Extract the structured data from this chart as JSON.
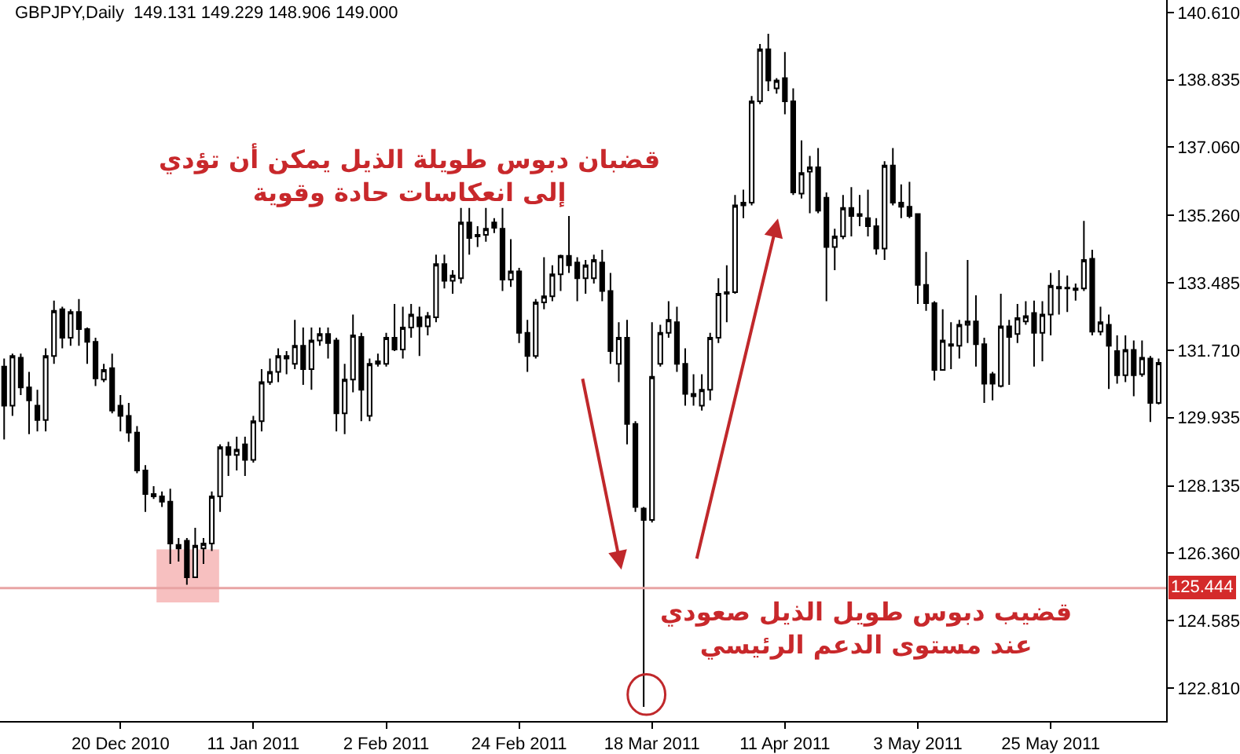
{
  "chart_data": {
    "type": "candlestick",
    "title": "GBPJPY,Daily  149.131 149.229 148.906 149.000",
    "categories": [
      null,
      null,
      null,
      null,
      null,
      null,
      null,
      null,
      null,
      null,
      null,
      null,
      null,
      null,
      "20 Dec 2010",
      null,
      null,
      null,
      null,
      null,
      null,
      null,
      null,
      null,
      null,
      null,
      null,
      null,
      null,
      null,
      "11 Jan 2011",
      null,
      null,
      null,
      null,
      null,
      null,
      null,
      null,
      null,
      null,
      null,
      null,
      null,
      null,
      null,
      "2 Feb 2011",
      null,
      null,
      null,
      null,
      null,
      null,
      null,
      null,
      null,
      null,
      null,
      null,
      null,
      null,
      null,
      "24 Feb 2011",
      null,
      null,
      null,
      null,
      null,
      null,
      null,
      null,
      null,
      null,
      null,
      null,
      null,
      null,
      null,
      "18 Mar 2011",
      null,
      null,
      null,
      null,
      null,
      null,
      null,
      null,
      null,
      null,
      null,
      null,
      null,
      null,
      null,
      "11 Apr 2011",
      null,
      null,
      null,
      null,
      null,
      null,
      null,
      null,
      null,
      null,
      null,
      null,
      null,
      null,
      null,
      "3 May 2011",
      null,
      null,
      null,
      null,
      null,
      null,
      null,
      null,
      null,
      null,
      null,
      null,
      null,
      null,
      null,
      "25 May 2011",
      null,
      null,
      null,
      null,
      null,
      null,
      null,
      null,
      null,
      null,
      null,
      null,
      null
    ],
    "ohlc": [
      [
        131.28,
        131.49,
        129.36,
        130.25
      ],
      [
        130.25,
        131.62,
        129.98,
        131.56
      ],
      [
        131.51,
        131.62,
        130.53,
        130.73
      ],
      [
        130.73,
        131.14,
        129.5,
        130.39
      ],
      [
        130.25,
        130.67,
        129.57,
        129.87
      ],
      [
        129.87,
        131.76,
        129.57,
        131.56
      ],
      [
        131.56,
        133.02,
        131.35,
        132.75
      ],
      [
        132.79,
        132.86,
        131.76,
        132.04
      ],
      [
        132.04,
        132.79,
        131.83,
        132.72
      ],
      [
        132.72,
        133.06,
        131.83,
        132.27
      ],
      [
        132.27,
        132.31,
        131.35,
        131.93
      ],
      [
        131.93,
        132.04,
        130.77,
        130.97
      ],
      [
        130.94,
        131.35,
        130.87,
        131.19
      ],
      [
        131.24,
        131.62,
        130.05,
        130.12
      ],
      [
        130.25,
        130.53,
        129.57,
        129.98
      ],
      [
        129.98,
        130.32,
        129.3,
        129.54
      ],
      [
        129.54,
        129.71,
        128.47,
        128.54
      ],
      [
        128.54,
        128.68,
        127.45,
        127.92
      ],
      [
        127.92,
        128.13,
        127.79,
        127.86
      ],
      [
        127.86,
        127.99,
        127.58,
        127.72
      ],
      [
        127.72,
        128.06,
        126.08,
        126.62
      ],
      [
        126.58,
        126.76,
        126.14,
        126.49
      ],
      [
        126.69,
        126.76,
        125.53,
        125.73
      ],
      [
        125.73,
        127.03,
        125.73,
        126.56
      ],
      [
        126.49,
        126.76,
        126.08,
        126.62
      ],
      [
        126.62,
        127.99,
        126.42,
        127.86
      ],
      [
        127.86,
        129.23,
        127.45,
        129.16
      ],
      [
        129.16,
        129.3,
        128.4,
        128.95
      ],
      [
        128.95,
        129.43,
        128.54,
        129.09
      ],
      [
        129.23,
        129.43,
        128.4,
        128.82
      ],
      [
        128.82,
        129.98,
        128.75,
        129.84
      ],
      [
        129.84,
        131.21,
        129.57,
        130.87
      ],
      [
        130.87,
        131.49,
        130.8,
        131.14
      ],
      [
        131.14,
        131.76,
        130.87,
        131.56
      ],
      [
        131.49,
        131.69,
        131.08,
        131.56
      ],
      [
        131.35,
        132.51,
        131.21,
        131.83
      ],
      [
        131.83,
        132.31,
        130.8,
        131.21
      ],
      [
        131.21,
        132.31,
        130.67,
        131.97
      ],
      [
        131.97,
        132.31,
        131.83,
        132.14
      ],
      [
        132.14,
        132.31,
        131.49,
        131.9
      ],
      [
        131.97,
        132.04,
        129.57,
        130.05
      ],
      [
        130.05,
        131.35,
        129.5,
        130.94
      ],
      [
        130.94,
        132.65,
        130.6,
        132.1
      ],
      [
        132.06,
        132.17,
        129.84,
        130.67
      ],
      [
        129.98,
        131.49,
        129.84,
        131.35
      ],
      [
        131.35,
        131.62,
        131.28,
        131.42
      ],
      [
        131.35,
        132.17,
        131.28,
        132.04
      ],
      [
        132.04,
        132.93,
        131.69,
        131.73
      ],
      [
        131.73,
        132.86,
        131.49,
        132.31
      ],
      [
        132.31,
        132.93,
        132.04,
        132.65
      ],
      [
        132.58,
        132.86,
        131.56,
        132.34
      ],
      [
        132.34,
        132.72,
        132.1,
        132.61
      ],
      [
        132.58,
        134.23,
        132.45,
        133.98
      ],
      [
        133.98,
        134.23,
        133.34,
        133.54
      ],
      [
        133.54,
        133.82,
        133.2,
        133.68
      ],
      [
        133.61,
        135.46,
        133.47,
        135.08
      ],
      [
        135.08,
        135.46,
        134.23,
        134.67
      ],
      [
        134.71,
        134.98,
        134.43,
        134.75
      ],
      [
        134.75,
        135.46,
        134.57,
        134.91
      ],
      [
        135.08,
        135.19,
        134.8,
        134.94
      ],
      [
        134.91,
        135.46,
        133.27,
        133.57
      ],
      [
        133.57,
        134.64,
        133.38,
        133.79
      ],
      [
        133.79,
        133.88,
        131.9,
        132.17
      ],
      [
        132.17,
        132.51,
        131.14,
        131.56
      ],
      [
        131.56,
        133.06,
        131.49,
        132.97
      ],
      [
        132.97,
        134.16,
        132.79,
        133.13
      ],
      [
        133.13,
        133.95,
        133.0,
        133.71
      ],
      [
        133.71,
        134.23,
        133.27,
        134.2
      ],
      [
        134.2,
        135.25,
        133.75,
        133.95
      ],
      [
        134.02,
        134.16,
        133.0,
        133.61
      ],
      [
        133.61,
        134.09,
        133.2,
        133.95
      ],
      [
        133.61,
        134.23,
        133.47,
        134.09
      ],
      [
        134.02,
        134.36,
        133.0,
        133.27
      ],
      [
        133.27,
        133.75,
        131.35,
        131.69
      ],
      [
        131.35,
        132.45,
        130.87,
        132.04
      ],
      [
        132.04,
        132.51,
        129.23,
        129.77
      ],
      [
        129.77,
        129.84,
        127.45,
        127.58
      ],
      [
        127.54,
        127.58,
        122.31,
        127.24
      ],
      [
        127.24,
        132.45,
        127.17,
        131.01
      ],
      [
        131.35,
        132.38,
        131.28,
        132.17
      ],
      [
        132.17,
        133.0,
        132.04,
        132.51
      ],
      [
        132.45,
        132.86,
        131.14,
        131.35
      ],
      [
        131.35,
        131.76,
        130.25,
        130.56
      ],
      [
        130.56,
        131.08,
        130.25,
        130.5
      ],
      [
        130.25,
        131.08,
        130.12,
        130.67
      ],
      [
        130.67,
        132.17,
        130.39,
        132.04
      ],
      [
        132.04,
        133.61,
        131.9,
        133.2
      ],
      [
        133.2,
        133.95,
        132.45,
        133.24
      ],
      [
        133.24,
        135.8,
        133.2,
        135.53
      ],
      [
        135.53,
        135.94,
        135.19,
        135.6
      ],
      [
        135.6,
        138.41,
        135.53,
        138.27
      ],
      [
        138.27,
        139.78,
        138.2,
        139.64
      ],
      [
        139.64,
        140.05,
        138.54,
        138.82
      ],
      [
        138.61,
        138.88,
        138.47,
        138.82
      ],
      [
        138.88,
        139.57,
        137.93,
        138.27
      ],
      [
        138.27,
        138.61,
        135.8,
        135.87
      ],
      [
        135.84,
        137.24,
        135.71,
        136.38
      ],
      [
        136.42,
        136.83,
        135.32,
        136.53
      ],
      [
        136.53,
        137.04,
        135.32,
        135.39
      ],
      [
        135.73,
        135.87,
        133.0,
        134.43
      ],
      [
        134.43,
        134.91,
        133.82,
        134.71
      ],
      [
        134.71,
        135.8,
        134.64,
        135.46
      ],
      [
        135.46,
        136.01,
        134.71,
        135.25
      ],
      [
        135.3,
        135.8,
        134.98,
        135.25
      ],
      [
        135.19,
        135.94,
        134.71,
        134.98
      ],
      [
        134.98,
        135.19,
        134.23,
        134.39
      ],
      [
        134.39,
        136.69,
        134.09,
        136.58
      ],
      [
        136.58,
        137.04,
        135.53,
        135.6
      ],
      [
        135.6,
        136.08,
        135.19,
        135.49
      ],
      [
        135.49,
        136.15,
        135.19,
        135.25
      ],
      [
        135.3,
        135.32,
        132.93,
        133.43
      ],
      [
        133.43,
        134.3,
        132.75,
        132.95
      ],
      [
        132.95,
        133.0,
        130.91,
        131.19
      ],
      [
        131.19,
        132.79,
        131.19,
        131.97
      ],
      [
        131.87,
        132.45,
        131.21,
        131.83
      ],
      [
        131.83,
        132.51,
        131.49,
        132.38
      ],
      [
        132.38,
        134.09,
        131.9,
        132.47
      ],
      [
        132.47,
        133.16,
        131.28,
        131.87
      ],
      [
        131.87,
        132.04,
        130.32,
        130.83
      ],
      [
        131.08,
        131.14,
        130.39,
        130.83
      ],
      [
        130.77,
        133.2,
        130.73,
        132.34
      ],
      [
        132.34,
        132.51,
        130.8,
        132.06
      ],
      [
        132.14,
        132.93,
        131.9,
        132.56
      ],
      [
        132.47,
        133.0,
        132.38,
        132.61
      ],
      [
        132.69,
        133.02,
        131.28,
        132.17
      ],
      [
        132.17,
        133.0,
        131.42,
        132.65
      ],
      [
        132.65,
        133.75,
        132.1,
        133.41
      ],
      [
        133.38,
        133.82,
        132.65,
        133.34
      ],
      [
        133.36,
        133.68,
        132.72,
        133.34
      ],
      [
        133.3,
        133.47,
        133.02,
        133.34
      ],
      [
        133.34,
        135.12,
        133.27,
        134.09
      ],
      [
        134.12,
        134.36,
        132.1,
        132.2
      ],
      [
        132.2,
        132.86,
        132.1,
        132.45
      ],
      [
        132.38,
        132.65,
        130.69,
        131.83
      ],
      [
        131.69,
        132.1,
        130.83,
        131.05
      ],
      [
        131.05,
        132.1,
        130.87,
        131.72
      ],
      [
        131.72,
        131.97,
        130.5,
        131.05
      ],
      [
        131.08,
        131.97,
        131.01,
        131.51
      ],
      [
        131.49,
        131.56,
        129.82,
        130.32
      ],
      [
        130.32,
        131.49,
        130.28,
        131.38
      ]
    ],
    "ylim": [
      121.94,
      140.94
    ],
    "yticks": [
      {
        "value": 140.61,
        "label": "140.610"
      },
      {
        "value": 138.835,
        "label": "138.835"
      },
      {
        "value": 137.06,
        "label": "137.060"
      },
      {
        "value": 135.26,
        "label": "135.260"
      },
      {
        "value": 133.485,
        "label": "133.485"
      },
      {
        "value": 131.71,
        "label": "131.710"
      },
      {
        "value": 129.935,
        "label": "129.935"
      },
      {
        "value": 128.135,
        "label": "128.135"
      },
      {
        "value": 126.36,
        "label": "126.360"
      },
      {
        "value": 124.585,
        "label": "124.585"
      },
      {
        "value": 122.81,
        "label": "122.810"
      }
    ],
    "ref_lines": [
      {
        "axis": "y",
        "value": 125.444,
        "label": "125.444",
        "color": "#e8a4a4"
      }
    ],
    "annotations": [
      "قضبان دبوس طويلة الذيل يمكن أن تؤدي\nإلى انعكاسات حادة وقوية",
      "قضيب دبوس طويل الذيل صعودي\nعند مستوى الدعم الرئيسي"
    ],
    "grid": false
  }
}
